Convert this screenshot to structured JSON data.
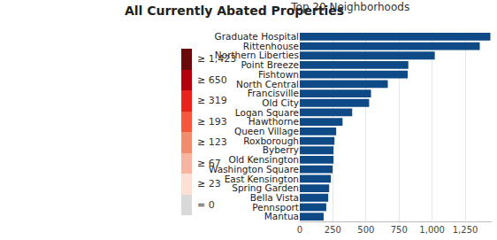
{
  "chart_data": [
    {
      "type": "choropleth",
      "title": "All Currently Abated Properties",
      "legend_labels": [
        "≥ 1,423",
        "≥ 650",
        "≥ 319",
        "≥ 193",
        "≥ 123",
        "≥ 67",
        "≥ 23",
        "= 0"
      ],
      "colors": [
        "#6b0a0a",
        "#b3000c",
        "#e8221c",
        "#f4573c",
        "#f28c6f",
        "#f7b5a0",
        "#fde0d5",
        "#d9d9d9"
      ]
    },
    {
      "type": "bar",
      "title": "Top 20 Neighborhoods",
      "orientation": "horizontal",
      "categories": [
        "Graduate Hospital",
        "Rittenhouse",
        "Northern Liberties",
        "Point Breeze",
        "Fishtown",
        "North Central",
        "Francisville",
        "Old City",
        "Logan Square",
        "Hawthorne",
        "Queen Village",
        "Roxborough",
        "Byberry",
        "Old Kensington",
        "Washington Square",
        "East Kensington",
        "Spring Garden",
        "Bella Vista",
        "Pennsport",
        "Mantua"
      ],
      "values": [
        1440,
        1360,
        1020,
        820,
        815,
        665,
        538,
        524,
        396,
        323,
        275,
        262,
        255,
        255,
        248,
        235,
        222,
        215,
        200,
        180
      ],
      "color": "#0d4a86",
      "xlim": [
        0,
        1450
      ],
      "xticks": [
        0,
        250,
        500,
        750,
        {
          "value": 1000,
          "label": "1,000"
        },
        {
          "value": 1250,
          "label": "1,250"
        }
      ],
      "grid": true
    }
  ]
}
